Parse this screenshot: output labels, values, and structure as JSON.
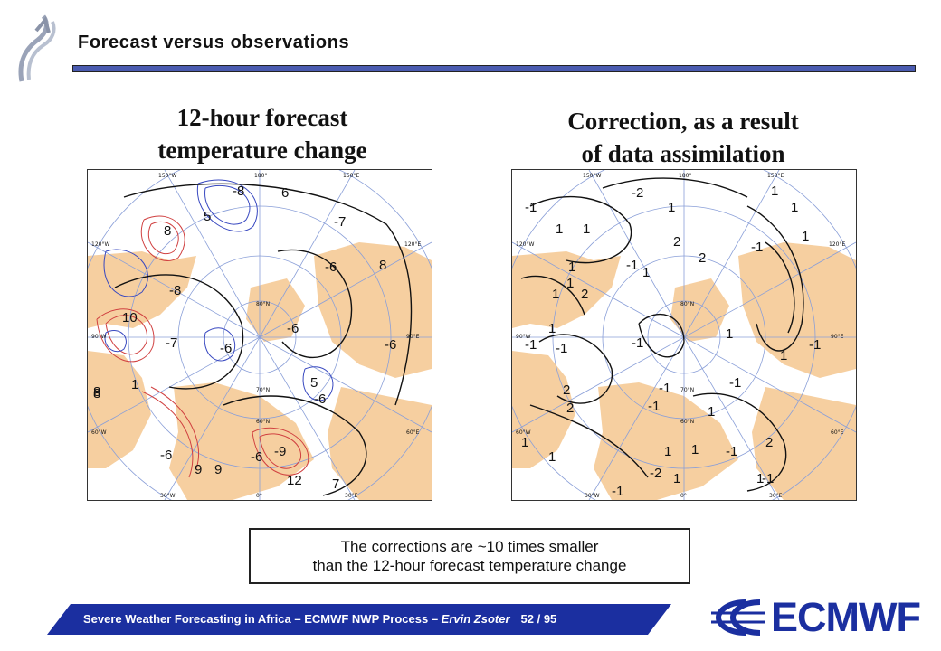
{
  "header": {
    "title": "Forecast versus observations",
    "logo_icon": "ecmwf-swirl-icon"
  },
  "panels": {
    "left": {
      "title_line1": "12-hour forecast",
      "title_line2": "temperature change",
      "longitude_labels": [
        "150°W",
        "180°",
        "150°E",
        "120°W",
        "120°E",
        "90°W",
        "90°E",
        "60°W",
        "60°E",
        "30°W",
        "0°",
        "30°E"
      ],
      "latitude_labels": [
        "80°N",
        "70°N",
        "60°N"
      ],
      "contour_labels": [
        "-8",
        "6",
        "5",
        "-7",
        "8",
        "8",
        "-6",
        "8",
        "-8",
        "-6",
        "10",
        "-7",
        "-6",
        "-6",
        "1",
        "-6",
        "8",
        "-6",
        "9",
        "9",
        "-9",
        "12",
        "7",
        "5",
        "-6"
      ]
    },
    "right": {
      "title_line1": "Correction, as a result",
      "title_line2": "of data assimilation",
      "longitude_labels": [
        "150°W",
        "180°",
        "150°E",
        "120°W",
        "120°E",
        "90°W",
        "90°E",
        "60°W",
        "60°E",
        "30°W",
        "0°",
        "30°E"
      ],
      "latitude_labels": [
        "80°N",
        "70°N",
        "60°N"
      ],
      "contour_labels": [
        "-1",
        "-2",
        "1",
        "1",
        "1",
        "1",
        "1",
        "2",
        "-1",
        "1",
        "2",
        "1",
        "-1",
        "1",
        "1",
        "2",
        "1",
        "1",
        "1",
        "-1",
        "-1",
        "-1",
        "-1",
        "1",
        "2",
        "-1",
        "-1",
        "-1",
        "2",
        "1",
        "1",
        "1",
        "1",
        "1",
        "-1",
        "2",
        "1",
        "-1",
        "1",
        "-1",
        "-2"
      ]
    }
  },
  "caption": {
    "line1": "The corrections are ~10 times smaller",
    "line2": "than the 12-hour forecast temperature change"
  },
  "footer": {
    "text": "Severe Weather Forecasting in Africa – ECMWF NWP Process – ",
    "author": "Ervin Zsoter",
    "page": "52 / 95",
    "bar_color": "#1b2fa0"
  },
  "brand": {
    "name": "ECMWF",
    "color": "#1b2fa0",
    "logo_icon": "ecmwf-wave-icon"
  }
}
